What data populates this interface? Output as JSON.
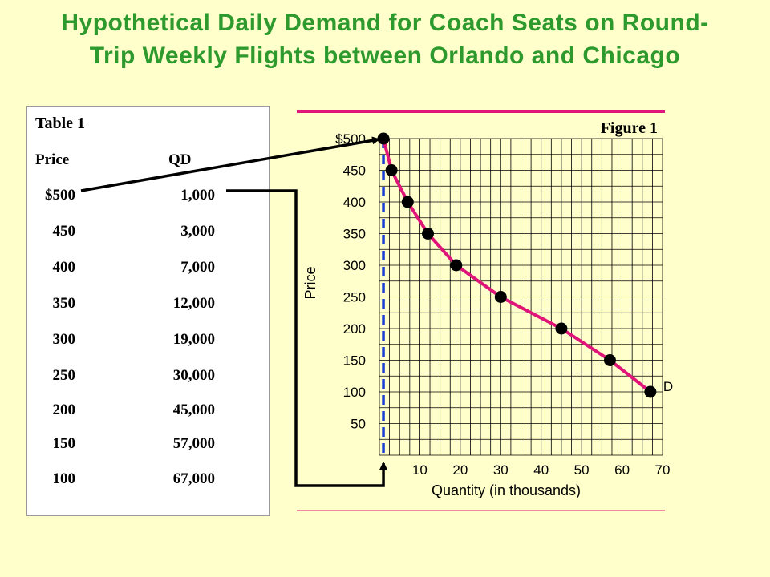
{
  "title": {
    "line1": "Hypothetical Daily Demand for Coach Seats on Round-",
    "line2": "Trip Weekly Flights between Orlando and Chicago"
  },
  "table": {
    "title": "Table 1",
    "header_price": "Price",
    "header_qd": "QD",
    "rows": [
      {
        "price": "$500",
        "qd": "1,000"
      },
      {
        "price": "450",
        "qd": "3,000"
      },
      {
        "price": "400",
        "qd": "7,000"
      },
      {
        "price": "350",
        "qd": "12,000"
      },
      {
        "price": "300",
        "qd": "19,000"
      },
      {
        "price": "250",
        "qd": "30,000"
      },
      {
        "price": "200",
        "qd": "45,000"
      },
      {
        "price": "150",
        "qd": "57,000"
      },
      {
        "price": "100",
        "qd": "67,000"
      }
    ]
  },
  "chart_data": {
    "type": "line",
    "figure_label": "Figure 1",
    "xlabel": "Quantity (in thousands)",
    "ylabel": "Price",
    "xlim": [
      0,
      70
    ],
    "ylim": [
      0,
      500
    ],
    "x_ticks": [
      "10",
      "20",
      "30",
      "40",
      "50",
      "60",
      "70"
    ],
    "y_ticks": [
      "50",
      "100",
      "150",
      "200",
      "250",
      "300",
      "350",
      "400",
      "450",
      "$500"
    ],
    "grid": true,
    "series": [
      {
        "name": "D",
        "x": [
          1,
          3,
          7,
          12,
          19,
          30,
          45,
          57,
          67
        ],
        "y": [
          500,
          450,
          400,
          350,
          300,
          250,
          200,
          150,
          100
        ]
      }
    ],
    "colors": {
      "curve": "#e0157a",
      "dashed_guide": "#1a3fd6",
      "frame_line": "#e0157a",
      "grid": "#000000"
    }
  }
}
